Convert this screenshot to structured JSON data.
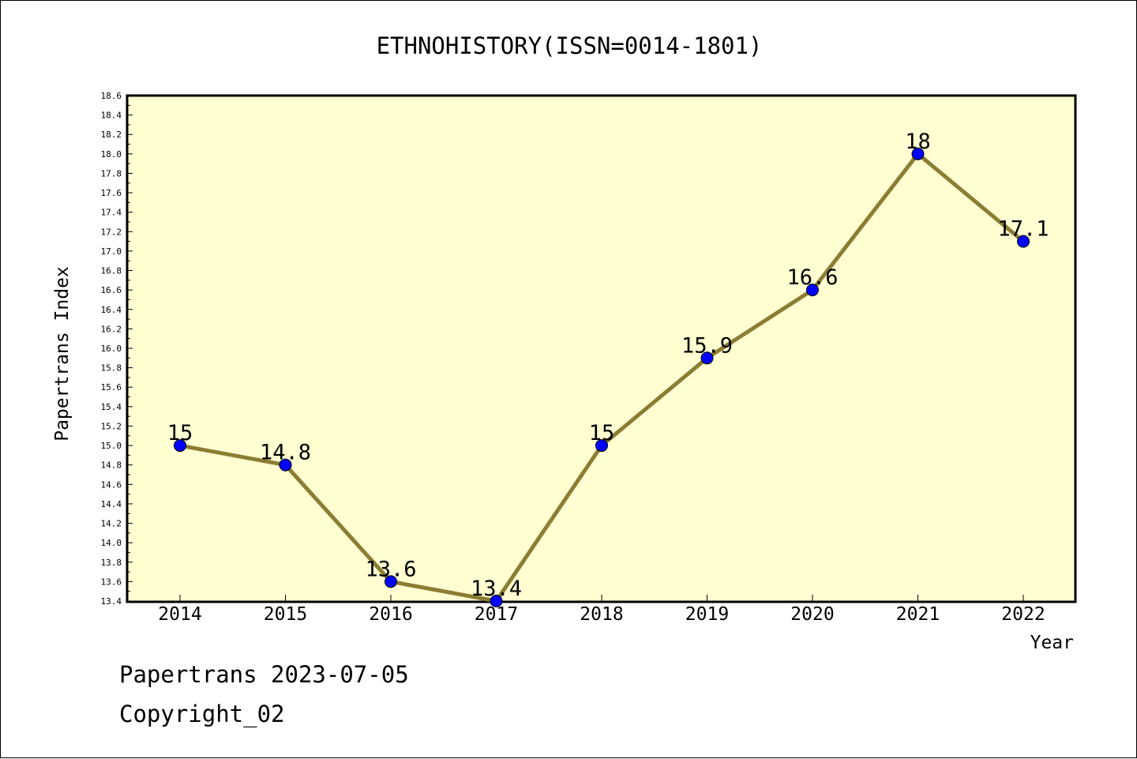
{
  "chart_data": {
    "type": "line",
    "title": "ETHNOHISTORY(ISSN=0014-1801)",
    "xlabel": "Year",
    "ylabel": "Papertrans Index",
    "categories": [
      "2014",
      "2015",
      "2016",
      "2017",
      "2018",
      "2019",
      "2020",
      "2021",
      "2022"
    ],
    "series": [
      {
        "values": [
          15,
          14.8,
          13.6,
          13.4,
          15,
          15.9,
          16.6,
          18,
          17.1
        ],
        "labels": [
          "15",
          "14.8",
          "13.6",
          "13.4",
          "15",
          "15.9",
          "16.6",
          "18",
          "17.1"
        ]
      }
    ],
    "ylim": [
      13.4,
      18.6
    ],
    "ytick_step": 0.2,
    "grid": false,
    "colors": {
      "plot_background": "#ffffd2",
      "line": "#8b7d33",
      "marker": "#0000ff"
    }
  },
  "footer": {
    "line1": "Papertrans 2023-07-05",
    "line2": "Copyright_02"
  }
}
